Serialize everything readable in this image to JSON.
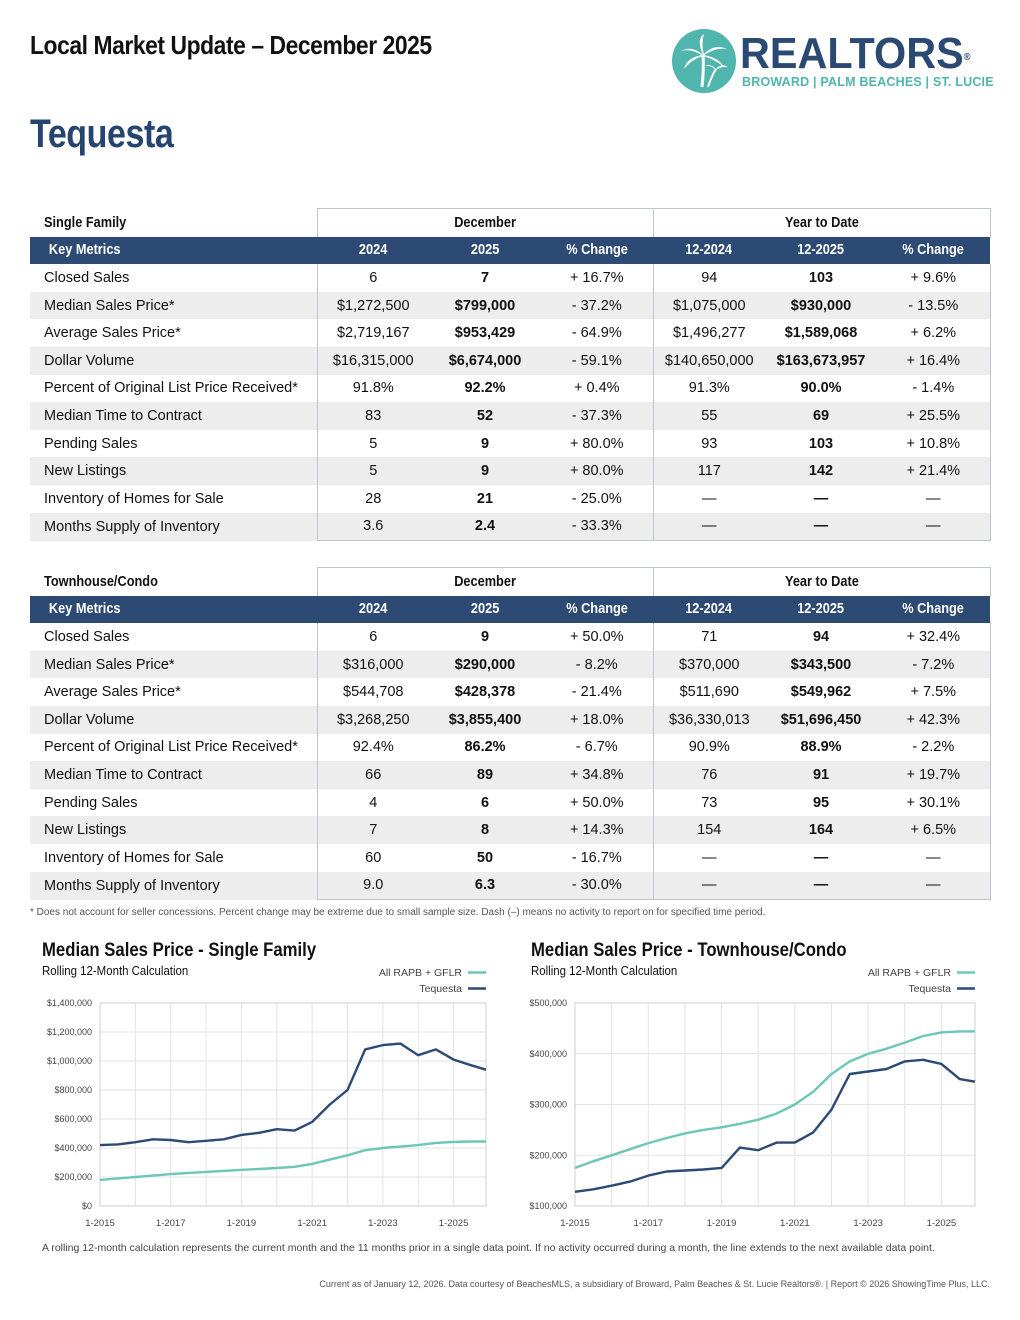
{
  "header": {
    "title": "Local Market Update – December 2025",
    "city": "Tequesta"
  },
  "logo": {
    "word": "REALTORS",
    "registered": "®",
    "subtitle": "BROWARD | PALM BEACHES | ST. LUCIE"
  },
  "tables": [
    {
      "section": "Single Family",
      "group_month": "December",
      "group_ytd": "Year to Date",
      "headers": [
        "Key Metrics",
        "2024",
        "2025",
        "% Change",
        "12-2024",
        "12-2025",
        "% Change"
      ],
      "rows": [
        [
          "Closed Sales",
          "6",
          "7",
          "+ 16.7%",
          "94",
          "103",
          "+ 9.6%"
        ],
        [
          "Median Sales Price*",
          "$1,272,500",
          "$799,000",
          "- 37.2%",
          "$1,075,000",
          "$930,000",
          "- 13.5%"
        ],
        [
          "Average Sales Price*",
          "$2,719,167",
          "$953,429",
          "- 64.9%",
          "$1,496,277",
          "$1,589,068",
          "+ 6.2%"
        ],
        [
          "Dollar Volume",
          "$16,315,000",
          "$6,674,000",
          "- 59.1%",
          "$140,650,000",
          "$163,673,957",
          "+ 16.4%"
        ],
        [
          "Percent of Original List Price Received*",
          "91.8%",
          "92.2%",
          "+ 0.4%",
          "91.3%",
          "90.0%",
          "- 1.4%"
        ],
        [
          "Median Time to Contract",
          "83",
          "52",
          "- 37.3%",
          "55",
          "69",
          "+ 25.5%"
        ],
        [
          "Pending Sales",
          "5",
          "9",
          "+ 80.0%",
          "93",
          "103",
          "+ 10.8%"
        ],
        [
          "New Listings",
          "5",
          "9",
          "+ 80.0%",
          "117",
          "142",
          "+ 21.4%"
        ],
        [
          "Inventory of Homes for Sale",
          "28",
          "21",
          "- 25.0%",
          "—",
          "—",
          "—"
        ],
        [
          "Months Supply of Inventory",
          "3.6",
          "2.4",
          "- 33.3%",
          "—",
          "—",
          "—"
        ]
      ]
    },
    {
      "section": "Townhouse/Condo",
      "group_month": "December",
      "group_ytd": "Year to Date",
      "headers": [
        "Key Metrics",
        "2024",
        "2025",
        "% Change",
        "12-2024",
        "12-2025",
        "% Change"
      ],
      "rows": [
        [
          "Closed Sales",
          "6",
          "9",
          "+ 50.0%",
          "71",
          "94",
          "+ 32.4%"
        ],
        [
          "Median Sales Price*",
          "$316,000",
          "$290,000",
          "- 8.2%",
          "$370,000",
          "$343,500",
          "- 7.2%"
        ],
        [
          "Average Sales Price*",
          "$544,708",
          "$428,378",
          "- 21.4%",
          "$511,690",
          "$549,962",
          "+ 7.5%"
        ],
        [
          "Dollar Volume",
          "$3,268,250",
          "$3,855,400",
          "+ 18.0%",
          "$36,330,013",
          "$51,696,450",
          "+ 42.3%"
        ],
        [
          "Percent of Original List Price Received*",
          "92.4%",
          "86.2%",
          "- 6.7%",
          "90.9%",
          "88.9%",
          "- 2.2%"
        ],
        [
          "Median Time to Contract",
          "66",
          "89",
          "+ 34.8%",
          "76",
          "91",
          "+ 19.7%"
        ],
        [
          "Pending Sales",
          "4",
          "6",
          "+ 50.0%",
          "73",
          "95",
          "+ 30.1%"
        ],
        [
          "New Listings",
          "7",
          "8",
          "+ 14.3%",
          "154",
          "164",
          "+ 6.5%"
        ],
        [
          "Inventory of Homes for Sale",
          "60",
          "50",
          "- 16.7%",
          "—",
          "—",
          "—"
        ],
        [
          "Months Supply of Inventory",
          "9.0",
          "6.3",
          "- 30.0%",
          "—",
          "—",
          "—"
        ]
      ]
    }
  ],
  "footnote": "* Does not account for seller concessions. Percent change may be extreme due to small sample size. Dash (–) means no activity to report on for specified time period.",
  "chart_data": [
    {
      "type": "line",
      "title": "Median Sales Price - Single Family",
      "subtitle": "Rolling 12-Month Calculation",
      "xlabel": "",
      "ylabel": "",
      "x_ticks": [
        "1-2015",
        "1-2017",
        "1-2019",
        "1-2021",
        "1-2023",
        "1-2025"
      ],
      "y_ticks": [
        "$0",
        "$200,000",
        "$400,000",
        "$600,000",
        "$800,000",
        "$1,000,000",
        "$1,200,000",
        "$1,400,000"
      ],
      "xlim": [
        "2015-01",
        "2025-12"
      ],
      "ylim": [
        0,
        1400000
      ],
      "grid": true,
      "legend": "top-right",
      "colors": {
        "All RAPB + GFLR": "#6cc7b4",
        "Tequesta": "#2c4a74"
      },
      "x": [
        "2015-01",
        "2015-07",
        "2016-01",
        "2016-07",
        "2017-01",
        "2017-07",
        "2018-01",
        "2018-07",
        "2019-01",
        "2019-07",
        "2020-01",
        "2020-07",
        "2021-01",
        "2021-07",
        "2022-01",
        "2022-07",
        "2023-01",
        "2023-07",
        "2024-01",
        "2024-07",
        "2025-01",
        "2025-07",
        "2025-12"
      ],
      "series": [
        {
          "name": "All RAPB + GFLR",
          "values": [
            180000,
            190000,
            200000,
            210000,
            220000,
            228000,
            235000,
            242000,
            250000,
            255000,
            262000,
            270000,
            290000,
            320000,
            350000,
            385000,
            400000,
            410000,
            420000,
            435000,
            442000,
            445000,
            445000
          ]
        },
        {
          "name": "Tequesta",
          "values": [
            420000,
            425000,
            440000,
            460000,
            455000,
            440000,
            450000,
            460000,
            490000,
            505000,
            530000,
            520000,
            580000,
            700000,
            800000,
            1080000,
            1110000,
            1120000,
            1040000,
            1080000,
            1010000,
            970000,
            940000
          ]
        }
      ]
    },
    {
      "type": "line",
      "title": "Median Sales Price - Townhouse/Condo",
      "subtitle": "Rolling 12-Month Calculation",
      "xlabel": "",
      "ylabel": "",
      "x_ticks": [
        "1-2015",
        "1-2017",
        "1-2019",
        "1-2021",
        "1-2023",
        "1-2025"
      ],
      "y_ticks": [
        "$100,000",
        "$200,000",
        "$300,000",
        "$400,000",
        "$500,000"
      ],
      "xlim": [
        "2015-01",
        "2025-12"
      ],
      "ylim": [
        100000,
        500000
      ],
      "grid": true,
      "legend": "top-right",
      "colors": {
        "All RAPB + GFLR": "#6cc7b4",
        "Tequesta": "#2c4a74"
      },
      "x": [
        "2015-01",
        "2015-07",
        "2016-01",
        "2016-07",
        "2017-01",
        "2017-07",
        "2018-01",
        "2018-07",
        "2019-01",
        "2019-07",
        "2020-01",
        "2020-07",
        "2021-01",
        "2021-07",
        "2022-01",
        "2022-07",
        "2023-01",
        "2023-07",
        "2024-01",
        "2024-07",
        "2025-01",
        "2025-07",
        "2025-12"
      ],
      "series": [
        {
          "name": "All RAPB + GFLR",
          "values": [
            175000,
            188000,
            200000,
            212000,
            224000,
            234000,
            243000,
            250000,
            255000,
            262000,
            270000,
            282000,
            300000,
            325000,
            360000,
            385000,
            400000,
            410000,
            422000,
            435000,
            442000,
            444000,
            444000
          ]
        },
        {
          "name": "Tequesta",
          "values": [
            128000,
            133000,
            140000,
            148000,
            160000,
            168000,
            170000,
            172000,
            175000,
            215000,
            210000,
            225000,
            225000,
            245000,
            290000,
            360000,
            365000,
            370000,
            385000,
            388000,
            380000,
            350000,
            345000
          ]
        }
      ]
    }
  ],
  "rolling_note": "A rolling 12-month calculation represents the current month and the 11 months prior in a single data point. If no activity occurred during a month, the line extends to the next available data point.",
  "credits": "Current as of January 12, 2026. Data courtesy of BeachesMLS, a subsidiary of Broward, Palm Beaches & St. Lucie Realtors®. | Report © 2026 ShowingTime Plus, LLC."
}
